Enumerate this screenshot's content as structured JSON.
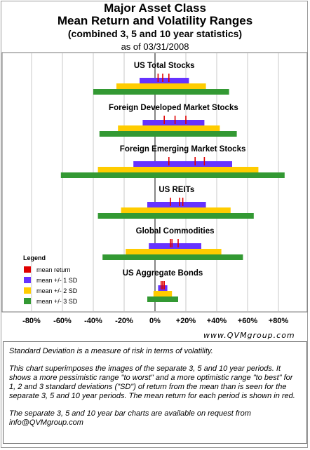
{
  "header": {
    "title": "Major Asset Class",
    "subtitle": "Mean Return and Volatility Ranges",
    "subtitle2": "(combined 3, 5 and 10 year statistics)",
    "as_of": "as of 03/31/2008"
  },
  "legend": {
    "title": "Legend",
    "items": [
      {
        "label": "mean return",
        "color": "#e00000"
      },
      {
        "label": "mean +/- 1 SD",
        "color": "#6633ff"
      },
      {
        "label": "mean +/- 2 SD",
        "color": "#ffcc00"
      },
      {
        "label": "mean +/- 3 SD",
        "color": "#339933"
      }
    ]
  },
  "source_text": "www.QVMgroup.com",
  "notes": [
    "Standard Deviation is a measure of risk in terms of volatility.",
    "This chart superimposes the images of the separate 3, 5 and 10 year periods. It shows a more pessimistic range \"to worst\" and a more optimistic range \"to best\" for 1, 2 and 3 standard deviations (\"SD\") of return from the mean than is seen for the separate 3, 5 and 10 year periods.  The mean return for each period is shown in red.",
    "The separate 3, 5 and 10 year bar charts are available on request from info@QVMgroup.com"
  ],
  "chart_data": {
    "type": "range-bar",
    "x_unit": "% annual return",
    "xlim": [
      -88,
      95
    ],
    "grid": "vertical",
    "x_ticks": [
      {
        "value": -80,
        "label": "-80%"
      },
      {
        "value": -60,
        "label": "-60%"
      },
      {
        "value": -40,
        "label": "-40%"
      },
      {
        "value": -20,
        "label": "-20%"
      },
      {
        "value": 0,
        "label": "0%"
      },
      {
        "value": 20,
        "label": "+20%"
      },
      {
        "value": 40,
        "label": "+40%"
      },
      {
        "value": 60,
        "label": "+60%"
      },
      {
        "value": 80,
        "label": "+80%"
      }
    ],
    "categories": [
      {
        "name": "US Total Stocks",
        "means": [
          2,
          5,
          9
        ],
        "sd1": [
          -10,
          22
        ],
        "sd2": [
          -25,
          33
        ],
        "sd3": [
          -40,
          48
        ]
      },
      {
        "name": "Foreign Developed Market Stocks",
        "means": [
          6,
          13,
          20
        ],
        "sd1": [
          -8,
          32
        ],
        "sd2": [
          -24,
          42
        ],
        "sd3": [
          -36,
          53
        ]
      },
      {
        "name": "Foreign Emerging Market Stocks",
        "means": [
          9,
          26,
          32
        ],
        "sd1": [
          -14,
          50
        ],
        "sd2": [
          -37,
          67
        ],
        "sd3": [
          -61,
          84
        ]
      },
      {
        "name": "US REITs",
        "means": [
          10,
          16,
          18
        ],
        "sd1": [
          -5,
          33
        ],
        "sd2": [
          -22,
          49
        ],
        "sd3": [
          -37,
          64
        ]
      },
      {
        "name": "Global Commodities",
        "means": [
          10,
          11,
          15
        ],
        "sd1": [
          -4,
          30
        ],
        "sd2": [
          -19,
          43
        ],
        "sd3": [
          -34,
          57
        ]
      },
      {
        "name": "US Aggregate Bonds",
        "means": [
          4,
          5,
          6
        ],
        "sd1": [
          2,
          8
        ],
        "sd2": [
          -1,
          11
        ],
        "sd3": [
          -5,
          15
        ]
      }
    ]
  }
}
